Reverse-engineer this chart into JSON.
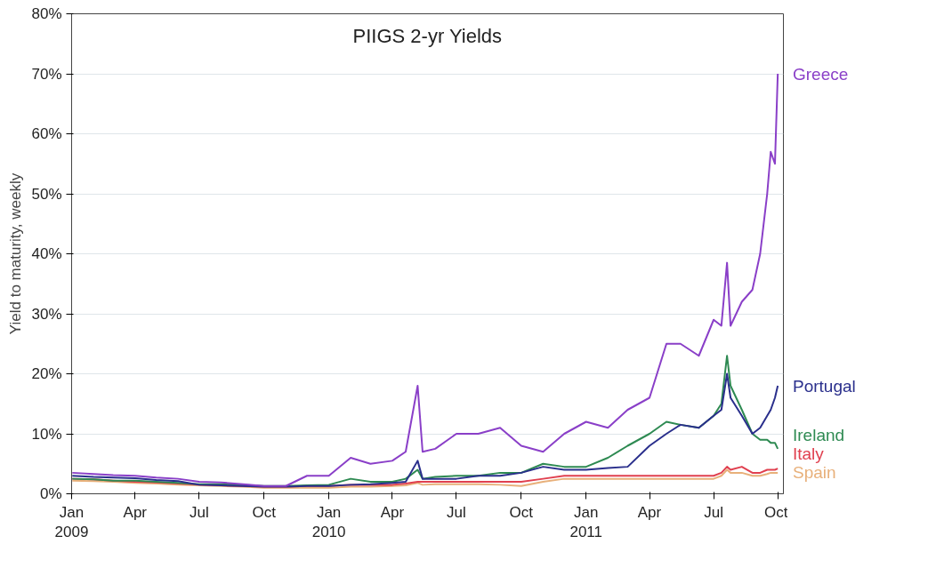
{
  "chart_data": {
    "type": "line",
    "title": "PIIGS 2-yr Yields",
    "ylabel": "Yield to maturity, weekly",
    "xlim": [
      "2009-01-01",
      "2011-10-08"
    ],
    "ylim": [
      0,
      80
    ],
    "xticks": [
      {
        "value": "2009-01-01",
        "label": "Jan\n2009"
      },
      {
        "value": "2009-04-01",
        "label": "Apr"
      },
      {
        "value": "2009-07-01",
        "label": "Jul"
      },
      {
        "value": "2009-10-01",
        "label": "Oct"
      },
      {
        "value": "2010-01-01",
        "label": "Jan\n2010"
      },
      {
        "value": "2010-04-01",
        "label": "Apr"
      },
      {
        "value": "2010-07-01",
        "label": "Jul"
      },
      {
        "value": "2010-10-01",
        "label": "Oct"
      },
      {
        "value": "2011-01-01",
        "label": "Jan\n2011"
      },
      {
        "value": "2011-04-01",
        "label": "Apr"
      },
      {
        "value": "2011-07-01",
        "label": "Jul"
      },
      {
        "value": "2011-10-01",
        "label": "Oct"
      }
    ],
    "yticks": [
      {
        "value": 0,
        "label": "0%"
      },
      {
        "value": 10,
        "label": "10%"
      },
      {
        "value": 20,
        "label": "20%"
      },
      {
        "value": 30,
        "label": "30%"
      },
      {
        "value": 40,
        "label": "40%"
      },
      {
        "value": 50,
        "label": "50%"
      },
      {
        "value": 60,
        "label": "60%"
      },
      {
        "value": 70,
        "label": "70%"
      },
      {
        "value": 80,
        "label": "80%"
      }
    ],
    "grid": "y",
    "marker": "none",
    "line_style": "solid",
    "x": [
      "2009-01-02",
      "2009-02-01",
      "2009-03-01",
      "2009-04-01",
      "2009-05-01",
      "2009-06-01",
      "2009-07-01",
      "2009-08-01",
      "2009-09-01",
      "2009-10-01",
      "2009-11-01",
      "2009-12-01",
      "2010-01-01",
      "2010-02-01",
      "2010-03-01",
      "2010-04-01",
      "2010-04-20",
      "2010-05-07",
      "2010-05-14",
      "2010-06-01",
      "2010-07-01",
      "2010-08-01",
      "2010-09-01",
      "2010-10-01",
      "2010-11-01",
      "2010-12-01",
      "2011-01-01",
      "2011-02-01",
      "2011-03-01",
      "2011-04-01",
      "2011-04-25",
      "2011-05-15",
      "2011-06-10",
      "2011-07-01",
      "2011-07-12",
      "2011-07-20",
      "2011-07-25",
      "2011-08-10",
      "2011-08-25",
      "2011-09-05",
      "2011-09-15",
      "2011-09-20",
      "2011-09-26",
      "2011-09-30"
    ],
    "series": [
      {
        "name": "Greece",
        "color": "#8a3fc8",
        "values": [
          3.5,
          3.3,
          3.1,
          3.0,
          2.7,
          2.5,
          2.0,
          1.9,
          1.6,
          1.3,
          1.3,
          3.0,
          3.0,
          6.0,
          5.0,
          5.5,
          7.0,
          18.0,
          7.0,
          7.5,
          10.0,
          10.0,
          11.0,
          8.0,
          7.0,
          10.0,
          12.0,
          11.0,
          14.0,
          16.0,
          25.0,
          25.0,
          23.0,
          29.0,
          28.0,
          38.5,
          28.0,
          32.0,
          34.0,
          40.0,
          50.0,
          57.0,
          55.0,
          70.0
        ]
      },
      {
        "name": "Portugal",
        "color": "#2a2f8c",
        "values": [
          3.0,
          2.8,
          2.7,
          2.6,
          2.3,
          2.1,
          1.5,
          1.4,
          1.3,
          1.2,
          1.2,
          1.3,
          1.3,
          1.5,
          1.6,
          1.8,
          2.0,
          5.5,
          2.5,
          2.5,
          2.5,
          3.0,
          3.0,
          3.5,
          4.5,
          4.0,
          4.0,
          4.3,
          4.5,
          8.0,
          10.0,
          11.5,
          11.0,
          13.0,
          14.0,
          20.0,
          16.0,
          13.0,
          10.0,
          11.0,
          13.0,
          14.0,
          16.0,
          18.0
        ]
      },
      {
        "name": "Ireland",
        "color": "#2e8a52",
        "values": [
          2.5,
          2.4,
          2.2,
          2.2,
          2.0,
          1.8,
          1.6,
          1.6,
          1.5,
          1.3,
          1.3,
          1.4,
          1.5,
          2.5,
          2.0,
          2.0,
          2.5,
          4.0,
          2.5,
          2.8,
          3.0,
          3.0,
          3.5,
          3.5,
          5.0,
          4.5,
          4.5,
          6.0,
          8.0,
          10.0,
          12.0,
          11.5,
          11.0,
          13.0,
          15.0,
          23.0,
          18.0,
          14.0,
          10.0,
          9.0,
          9.0,
          8.5,
          8.5,
          7.5
        ]
      },
      {
        "name": "Italy",
        "color": "#e0404f",
        "values": [
          2.5,
          2.4,
          2.2,
          2.0,
          1.9,
          1.7,
          1.5,
          1.4,
          1.3,
          1.2,
          1.2,
          1.3,
          1.3,
          1.5,
          1.5,
          1.5,
          1.7,
          2.0,
          2.0,
          2.0,
          2.0,
          2.0,
          2.0,
          2.0,
          2.5,
          3.0,
          3.0,
          3.0,
          3.0,
          3.0,
          3.0,
          3.0,
          3.0,
          3.0,
          3.5,
          4.5,
          4.0,
          4.5,
          3.5,
          3.5,
          4.0,
          4.0,
          4.0,
          4.2
        ]
      },
      {
        "name": "Spain",
        "color": "#e8b07a",
        "values": [
          2.2,
          2.1,
          2.0,
          1.8,
          1.7,
          1.5,
          1.4,
          1.3,
          1.2,
          1.0,
          1.0,
          1.0,
          1.0,
          1.2,
          1.2,
          1.3,
          1.4,
          1.8,
          1.5,
          1.6,
          1.6,
          1.6,
          1.5,
          1.3,
          2.0,
          2.5,
          2.5,
          2.5,
          2.5,
          2.5,
          2.5,
          2.5,
          2.5,
          2.5,
          3.0,
          4.0,
          3.5,
          3.5,
          3.0,
          3.0,
          3.3,
          3.5,
          3.5,
          3.5
        ]
      }
    ]
  }
}
